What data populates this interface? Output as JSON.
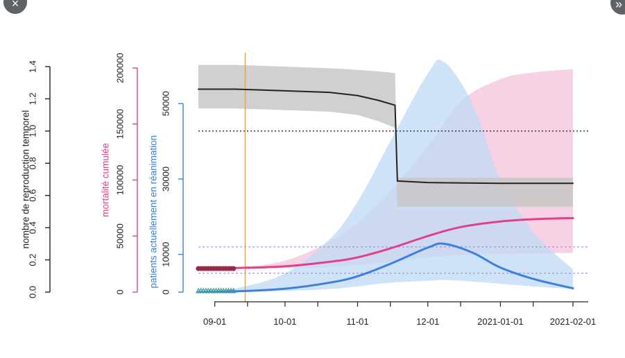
{
  "controls": {
    "close_icon": "×",
    "next_icon": "»"
  },
  "colors": {
    "rt_axis": "#333333",
    "mortality": "#e0408a",
    "mortality_band": "#f2bfd8",
    "icu": "#3b7fe0",
    "icu_band": "#bfdaf5",
    "rt": "#222222",
    "rt_band": "#c8c8c8",
    "intervention": "#e8a44a",
    "threshold_dashed": "#9b8ce8",
    "observed_mortality": "#9b2a4a",
    "observed_icu": "#3a9a9a"
  },
  "chart_data": {
    "type": "line",
    "x_axis": {
      "ticks": [
        "09-01",
        "10-01",
        "11-01",
        "12-01",
        "2021-01-01",
        "2021-02-01"
      ]
    },
    "axes": {
      "rt": {
        "label": "nombre de reproduction temporel",
        "ticks": [
          "0.0",
          "0.2",
          "0.4",
          "0.6",
          "0.8",
          "1.0",
          "1.2",
          "1.4"
        ],
        "range": [
          0,
          1.4
        ]
      },
      "mortality": {
        "label": "mortalité cumulée",
        "ticks": [
          "0",
          "50000",
          "100000",
          "150000",
          "200000"
        ],
        "range": [
          0,
          200000
        ]
      },
      "icu": {
        "label": "patients actuellement en réanimation",
        "ticks": [
          "0",
          "10000",
          "30000",
          "50000"
        ],
        "range": [
          0,
          60000
        ]
      }
    },
    "series": [
      {
        "key": "rt",
        "axis": "rt",
        "x": [
          "2020-08-25",
          "2020-09-10",
          "2020-10-01",
          "2020-10-20",
          "2020-11-01",
          "2020-11-10",
          "2020-11-17",
          "2020-11-18",
          "2020-12-01",
          "2021-01-01",
          "2021-02-01"
        ],
        "y": [
          1.26,
          1.26,
          1.25,
          1.24,
          1.22,
          1.19,
          1.16,
          0.69,
          0.68,
          0.675,
          0.675
        ],
        "band_upper": [
          1.41,
          1.41,
          1.4,
          1.39,
          1.38,
          1.37,
          1.36,
          0.71,
          0.71,
          0.71,
          0.71
        ],
        "band_lower": [
          1.14,
          1.14,
          1.13,
          1.12,
          1.1,
          1.06,
          1.02,
          0.53,
          0.53,
          0.53,
          0.53
        ]
      },
      {
        "key": "icu",
        "axis": "icu",
        "x": [
          "2020-08-25",
          "2020-09-10",
          "2020-10-01",
          "2020-10-20",
          "2020-11-01",
          "2020-11-15",
          "2020-12-01",
          "2020-12-08",
          "2020-12-20",
          "2021-01-01",
          "2021-01-15",
          "2021-02-01"
        ],
        "y": [
          0,
          200,
          900,
          2500,
          4200,
          7500,
          11800,
          12800,
          10500,
          6500,
          3500,
          1000
        ],
        "band_upper": [
          0,
          1000,
          5000,
          14000,
          24000,
          40000,
          58000,
          61000,
          50000,
          30000,
          16000,
          6000
        ],
        "band_lower": [
          0,
          100,
          300,
          800,
          1500,
          2500,
          3000,
          3200,
          2800,
          2200,
          1500,
          800
        ]
      },
      {
        "key": "mortality",
        "axis": "mortality",
        "x": [
          "2020-08-25",
          "2020-09-10",
          "2020-10-01",
          "2020-10-20",
          "2020-11-01",
          "2020-11-15",
          "2020-12-01",
          "2020-12-15",
          "2021-01-01",
          "2021-01-15",
          "2021-02-01"
        ],
        "y": [
          21000,
          21500,
          23000,
          27000,
          31000,
          39000,
          50000,
          58000,
          63000,
          65000,
          66000
        ],
        "band_upper": [
          21000,
          22000,
          28000,
          45000,
          62000,
          90000,
          130000,
          170000,
          190000,
          196000,
          199000
        ],
        "band_lower": [
          21000,
          21000,
          21500,
          22500,
          24000,
          27000,
          31000,
          33000,
          34000,
          34500,
          35000
        ]
      }
    ],
    "observed": [
      {
        "key": "observed_mortality",
        "axis": "mortality",
        "x_range": [
          "2020-08-25",
          "2020-09-09"
        ],
        "y": 21000
      },
      {
        "key": "observed_icu",
        "axis": "icu",
        "x_range": [
          "2020-08-25",
          "2020-09-09"
        ],
        "y": 400
      }
    ],
    "reference_lines": [
      {
        "key": "rt_one",
        "axis": "rt",
        "y": 1.0,
        "style": "dotted"
      },
      {
        "key": "icu_high",
        "axis": "icu",
        "y": 12000,
        "style": "dashed"
      },
      {
        "key": "icu_low",
        "axis": "icu",
        "y": 5000,
        "style": "dashed"
      },
      {
        "key": "intervention_date",
        "x": "2020-09-14",
        "style": "solid"
      }
    ],
    "grid": false
  }
}
